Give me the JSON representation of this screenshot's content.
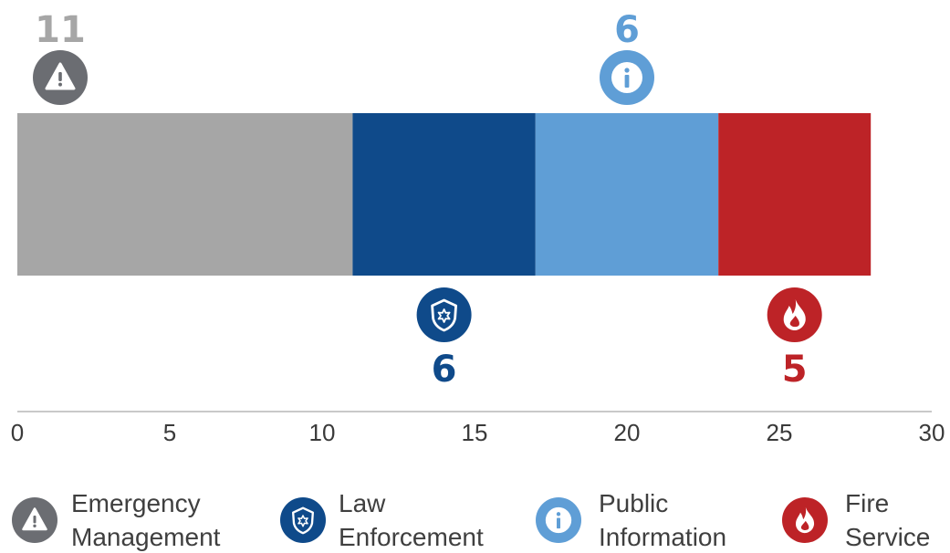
{
  "chart_data": {
    "type": "bar",
    "orientation": "horizontal",
    "stacked": true,
    "categories": [
      "Emergency Management",
      "Law Enforcement",
      "Public Information",
      "Fire Service"
    ],
    "series": [
      {
        "name": "Emergency Management",
        "value": 11,
        "color": "#a6a6a6",
        "label_color": "#a6a6a6",
        "icon_color": "#6b6d72",
        "icon": "warning-icon",
        "legend_lines": [
          "Emergency",
          "Management"
        ]
      },
      {
        "name": "Law Enforcement",
        "value": 6,
        "color": "#0f4a8a",
        "label_color": "#0f4a8a",
        "icon_color": "#0f4a8a",
        "icon": "police-badge-icon",
        "legend_lines": [
          "Law",
          "Enforcement"
        ]
      },
      {
        "name": "Public Information",
        "value": 6,
        "color": "#5f9ed6",
        "label_color": "#5f9ed6",
        "icon_color": "#5f9ed6",
        "icon": "info-icon",
        "legend_lines": [
          "Public",
          "Information"
        ]
      },
      {
        "name": "Fire Service",
        "value": 5,
        "color": "#bd2327",
        "label_color": "#bd2327",
        "icon_color": "#bd2327",
        "icon": "flame-icon",
        "legend_lines": [
          "Fire",
          "Service"
        ]
      }
    ],
    "xlim": [
      0,
      30
    ],
    "ticks": [
      0,
      5,
      10,
      15,
      20,
      25,
      30
    ],
    "grid": false,
    "legend": "bottom"
  }
}
